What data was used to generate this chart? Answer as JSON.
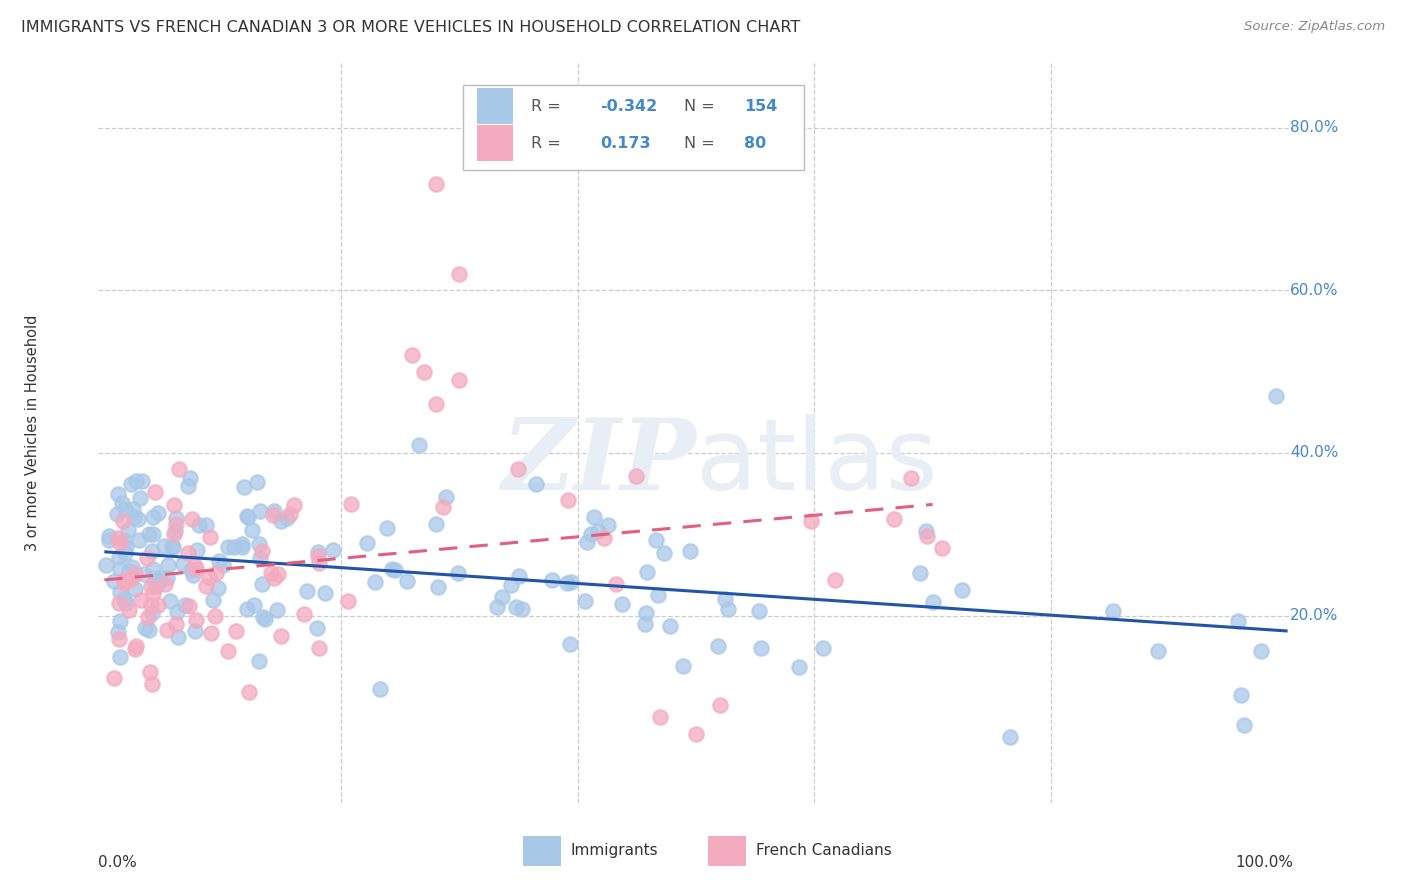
{
  "title": "IMMIGRANTS VS FRENCH CANADIAN 3 OR MORE VEHICLES IN HOUSEHOLD CORRELATION CHART",
  "source": "Source: ZipAtlas.com",
  "ylabel": "3 or more Vehicles in Household",
  "legend_immigrants_R": "-0.342",
  "legend_immigrants_N": "154",
  "legend_french_R": "0.173",
  "legend_french_N": "80",
  "immigrants_color": "#a8c8e8",
  "french_color": "#f4aabf",
  "immigrants_line_color": "#2255aa",
  "french_line_color": "#e06080",
  "watermark_color": "#e8eef5",
  "background_color": "#ffffff",
  "grid_color": "#cccccc",
  "label_color": "#5599cc",
  "ytick_right_color": "#4488cc"
}
